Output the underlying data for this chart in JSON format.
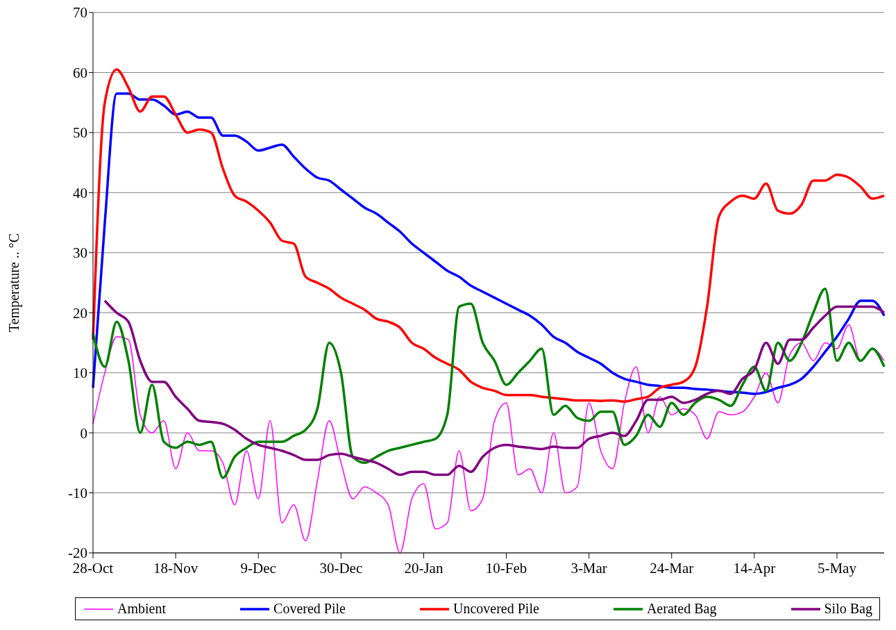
{
  "chart_data": {
    "type": "line",
    "ylabel": "Temperature  ..  °C",
    "categories": [
      "28-Oct",
      null,
      null,
      null,
      null,
      null,
      null,
      "18-Nov",
      null,
      null,
      null,
      null,
      null,
      null,
      "9-Dec",
      null,
      null,
      null,
      null,
      null,
      null,
      "30-Dec",
      null,
      null,
      null,
      null,
      null,
      null,
      "20-Jan",
      null,
      null,
      null,
      null,
      null,
      null,
      "10-Feb",
      null,
      null,
      null,
      null,
      null,
      null,
      "3-Mar",
      null,
      null,
      null,
      null,
      null,
      null,
      "24-Mar",
      null,
      null,
      null,
      null,
      null,
      null,
      "14-Apr",
      null,
      null,
      null,
      null,
      null,
      null,
      "5-May",
      null,
      null,
      null,
      null
    ],
    "series": [
      {
        "name": "Ambient",
        "color": "#ff00ff",
        "values": [
          1.5,
          10,
          16,
          15.5,
          3,
          0,
          2,
          -6,
          0,
          -3,
          -3,
          -5,
          -12,
          -3,
          -11,
          2,
          -15,
          -12,
          -18,
          -8,
          2,
          -5,
          -11,
          -9,
          -10,
          -12,
          -20,
          -11,
          -8.5,
          -16,
          -15,
          -3,
          -13,
          -11,
          2,
          5,
          -7,
          -6,
          -10,
          0,
          -10,
          -9,
          5,
          -3,
          -6,
          5,
          11,
          0,
          6,
          3,
          4,
          3,
          -1,
          3.5,
          3,
          3.5,
          6,
          10,
          5,
          13,
          15,
          12,
          15,
          14,
          18,
          12,
          14,
          12
        ]
      },
      {
        "name": "Covered Pile",
        "color": "#0000ff",
        "values": [
          7.5,
          35,
          56.5,
          56.5,
          55.5,
          55.5,
          54.5,
          53,
          53.5,
          52.5,
          52.5,
          49.5,
          49.5,
          48.5,
          47,
          47.5,
          48,
          46,
          44,
          42.5,
          42,
          40.5,
          39,
          37.5,
          36.5,
          35,
          33.5,
          31.5,
          30,
          28.5,
          27,
          26,
          24.5,
          23.5,
          22.5,
          21.5,
          20.5,
          19.5,
          18,
          16,
          15,
          13.5,
          12.5,
          11.5,
          10,
          9,
          8.5,
          8,
          7.8,
          7.5,
          7.5,
          7.3,
          7.2,
          7,
          6.8,
          6.7,
          6.5,
          6.8,
          7.5,
          8,
          9,
          11,
          13.5,
          16,
          19,
          22,
          22,
          19.5
        ]
      },
      {
        "name": "Uncovered Pile",
        "color": "#ff0000",
        "values": [
          15.5,
          55,
          60.5,
          57.5,
          53.5,
          56,
          56,
          53,
          50,
          50.5,
          50,
          44,
          39.5,
          38.5,
          37,
          35,
          32,
          31.5,
          26,
          25,
          24,
          22.5,
          21.5,
          20.5,
          19,
          18.5,
          17.5,
          15,
          14,
          12.5,
          11.5,
          10.5,
          8.5,
          7.5,
          7,
          6.3,
          6.3,
          6.3,
          6,
          5.8,
          5.6,
          5.4,
          5.4,
          5.3,
          5.4,
          5.2,
          5.6,
          6,
          7.5,
          8,
          8.5,
          11,
          21,
          36,
          38.5,
          39.5,
          39,
          41.5,
          37,
          36.5,
          38,
          42,
          42,
          43,
          42.5,
          41,
          39,
          39.5
        ]
      },
      {
        "name": "Aerated Bag",
        "color": "#008000",
        "values": [
          16.5,
          11,
          18.5,
          12,
          0,
          8,
          -1.5,
          -2.5,
          -1.5,
          -2,
          -1.5,
          -7.5,
          -4,
          -2.5,
          -1.5,
          -1.5,
          -1.5,
          -0.5,
          0.5,
          4,
          15,
          10,
          -4,
          -5,
          -4,
          -3,
          -2.5,
          -2,
          -1.5,
          -1,
          3,
          21,
          21.5,
          15,
          12,
          8,
          10,
          12,
          14,
          3,
          4.5,
          2.5,
          2,
          3.5,
          3.5,
          -2,
          -0.5,
          3,
          1,
          5,
          3,
          5,
          6,
          5.5,
          4.5,
          8,
          11,
          7,
          15,
          12,
          15,
          20,
          24,
          12,
          15,
          12,
          14,
          11
        ]
      },
      {
        "name": "Silo Bag",
        "color": "#800080",
        "values": [
          null,
          22,
          20,
          18.5,
          12,
          8.5,
          8.5,
          6,
          4,
          2,
          1.8,
          1.5,
          0.5,
          -1,
          -2,
          -2.5,
          -3,
          -3.7,
          -4.5,
          -4.5,
          -3.7,
          -3.5,
          -4,
          -4.5,
          -5,
          -6,
          -7,
          -6.5,
          -6.5,
          -7,
          -7,
          -5.5,
          -6.5,
          -4,
          -2.5,
          -2,
          -2.3,
          -2.5,
          -2.7,
          -2.3,
          -2.5,
          -2.5,
          -1,
          -0.5,
          0,
          -0.5,
          2,
          5.5,
          5.5,
          6,
          5,
          5.5,
          6.5,
          7,
          6.5,
          9,
          10.5,
          15,
          11.5,
          15.5,
          15.5,
          17.5,
          19.5,
          21,
          21,
          21,
          21,
          20
        ]
      }
    ],
    "ylim": [
      -20,
      70
    ],
    "yticks": [
      -20,
      -10,
      0,
      10,
      20,
      30,
      40,
      50,
      60,
      70
    ],
    "grid": "y",
    "legend": "bottom",
    "marker": "none",
    "line_style": "solid"
  }
}
